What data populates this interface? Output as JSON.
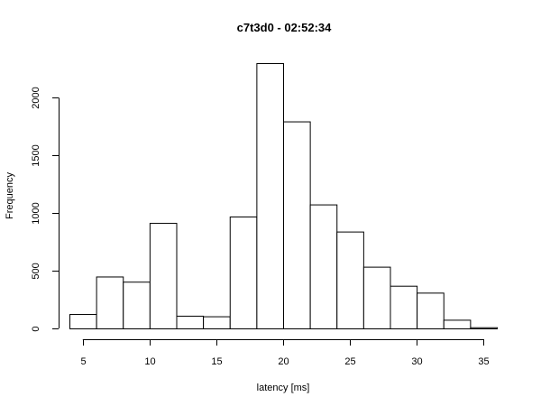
{
  "chart_data": {
    "type": "bar",
    "title": "c7t3d0 - 02:52:34",
    "xlabel": "latency [ms]",
    "ylabel": "Frequency",
    "bins": [
      {
        "x0": 4,
        "x1": 6,
        "value": 125
      },
      {
        "x0": 6,
        "x1": 8,
        "value": 450
      },
      {
        "x0": 8,
        "x1": 10,
        "value": 405
      },
      {
        "x0": 10,
        "x1": 12,
        "value": 915
      },
      {
        "x0": 12,
        "x1": 14,
        "value": 110
      },
      {
        "x0": 14,
        "x1": 16,
        "value": 105
      },
      {
        "x0": 16,
        "x1": 18,
        "value": 970
      },
      {
        "x0": 18,
        "x1": 20,
        "value": 2300
      },
      {
        "x0": 20,
        "x1": 22,
        "value": 1795
      },
      {
        "x0": 22,
        "x1": 24,
        "value": 1075
      },
      {
        "x0": 24,
        "x1": 26,
        "value": 840
      },
      {
        "x0": 26,
        "x1": 28,
        "value": 535
      },
      {
        "x0": 28,
        "x1": 30,
        "value": 370
      },
      {
        "x0": 30,
        "x1": 32,
        "value": 310
      },
      {
        "x0": 32,
        "x1": 34,
        "value": 75
      },
      {
        "x0": 34,
        "x1": 36,
        "value": 10
      }
    ],
    "xticks": [
      5,
      10,
      15,
      20,
      25,
      30,
      35
    ],
    "xtick_labels": [
      "5",
      "10",
      "15",
      "20",
      "25",
      "30",
      "35"
    ],
    "yticks": [
      0,
      500,
      1000,
      1500,
      2000
    ],
    "ytick_labels": [
      "0",
      "500",
      "1000",
      "1500",
      "2000"
    ],
    "xlim": [
      4,
      36
    ],
    "ylim": [
      0,
      2300
    ],
    "grid": false,
    "colors": {
      "bar_fill": "#ffffff",
      "bar_stroke": "#000000"
    }
  }
}
